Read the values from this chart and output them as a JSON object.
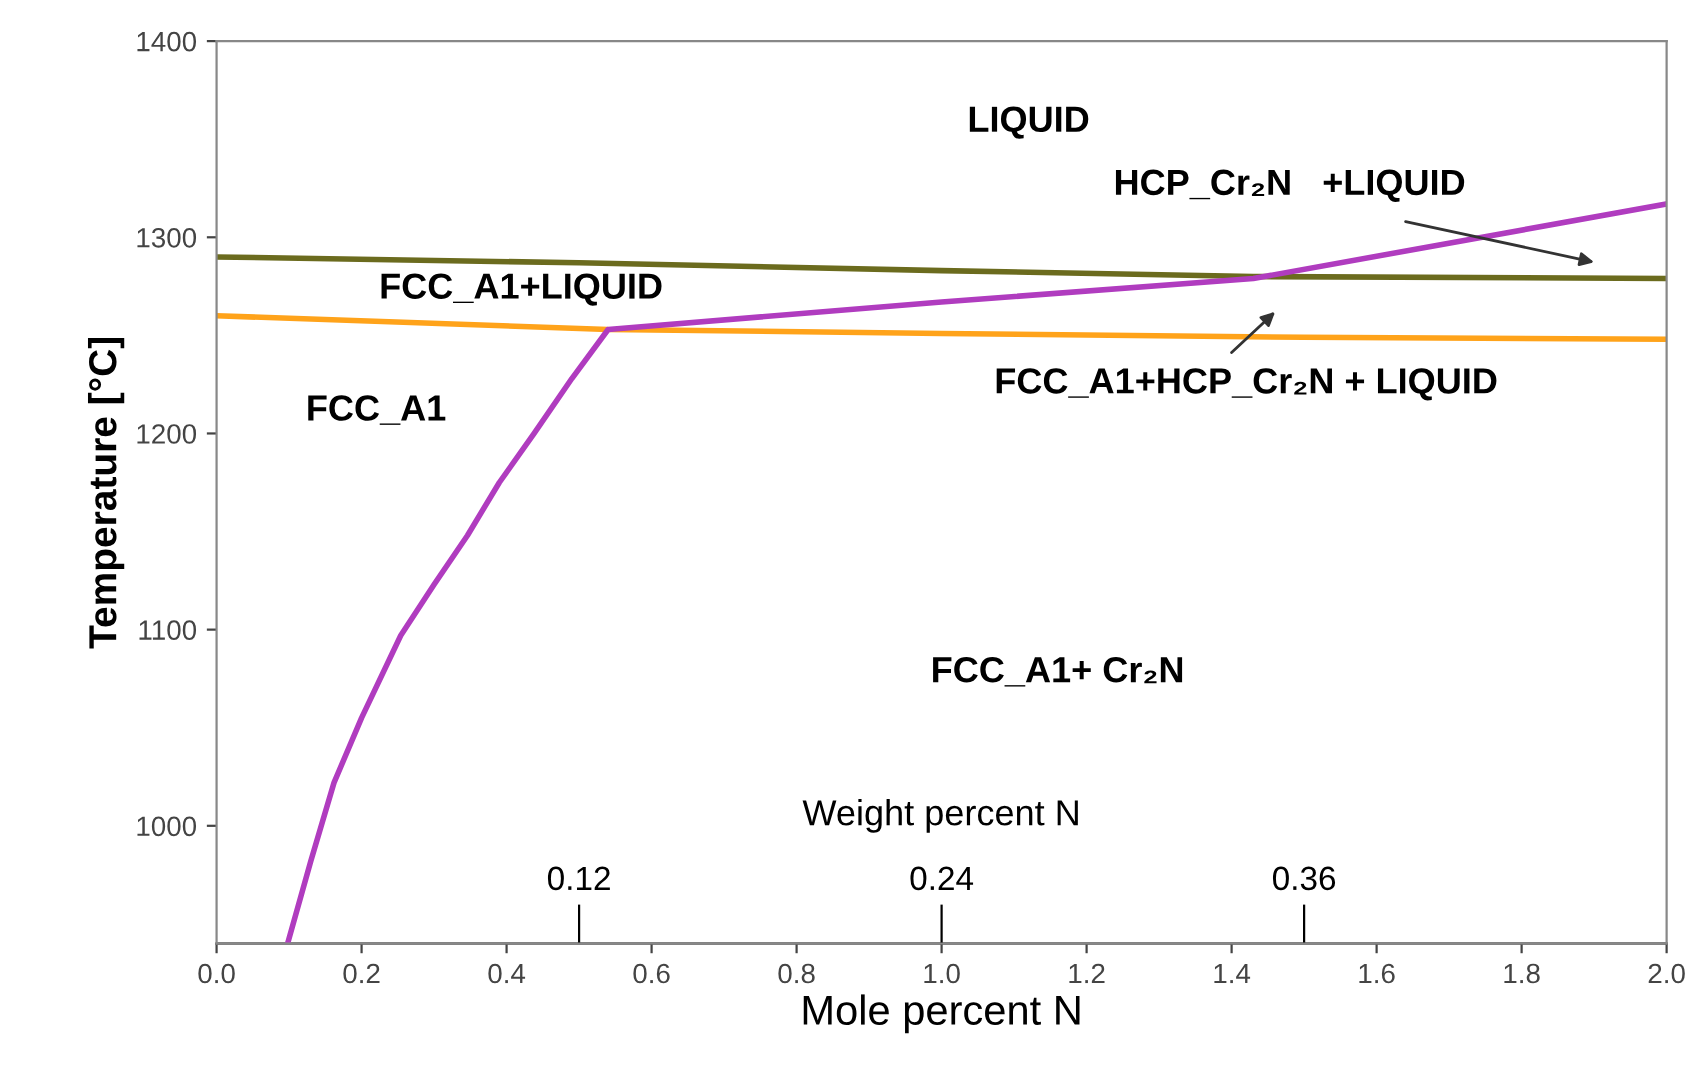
{
  "chart_data": {
    "type": "line",
    "xlabel": "Mole percent N",
    "ylabel": "Temperature [°C]",
    "x2label": "Weight percent N",
    "xlim": [
      0,
      2.0
    ],
    "xticks": [
      {
        "value": 0,
        "label": "0.0"
      },
      0.2,
      0.4,
      0.6,
      0.8,
      {
        "value": 1,
        "label": "1.0"
      },
      1.2,
      1.4,
      1.6,
      1.8,
      {
        "value": 2,
        "label": "2.0"
      }
    ],
    "ylim": [
      940,
      1400
    ],
    "yticks": [
      1000,
      1100,
      1200,
      1300,
      1400
    ],
    "x2lim": [
      0,
      0.48
    ],
    "x2ticks": [
      0.12,
      0.24,
      0.36
    ],
    "grid": false,
    "legend": false,
    "marker": "none",
    "line_style": "solid",
    "series": [
      {
        "color": "#6b6b1e",
        "x": [
          0,
          0.5,
          1.0,
          1.43,
          2.0
        ],
        "values": [
          1290,
          1287,
          1283,
          1280,
          1279
        ]
      },
      {
        "color": "#ffa31a",
        "x": [
          0,
          0.54,
          1.0,
          1.5,
          2.0
        ],
        "values": [
          1260,
          1253,
          1251,
          1249,
          1248
        ]
      },
      {
        "color": "#b03cbf",
        "x": [
          0.098,
          0.13,
          0.162,
          0.2,
          0.254,
          0.3,
          0.346,
          0.39,
          0.438,
          0.49,
          0.54,
          1.0,
          1.43,
          2.0
        ],
        "values": [
          940,
          982,
          1022,
          1055,
          1097,
          1123,
          1148,
          1175,
          1200,
          1228,
          1253,
          1267,
          1279,
          1317
        ]
      }
    ],
    "annotations": [
      "LIQUID",
      "HCP_Cr₂N   +LIQUID",
      "FCC_A1+LIQUID",
      "FCC_A1",
      "FCC_A1+ Cr₂N",
      "FCC_A1+HCP_Cr₂N + LIQUID"
    ]
  }
}
